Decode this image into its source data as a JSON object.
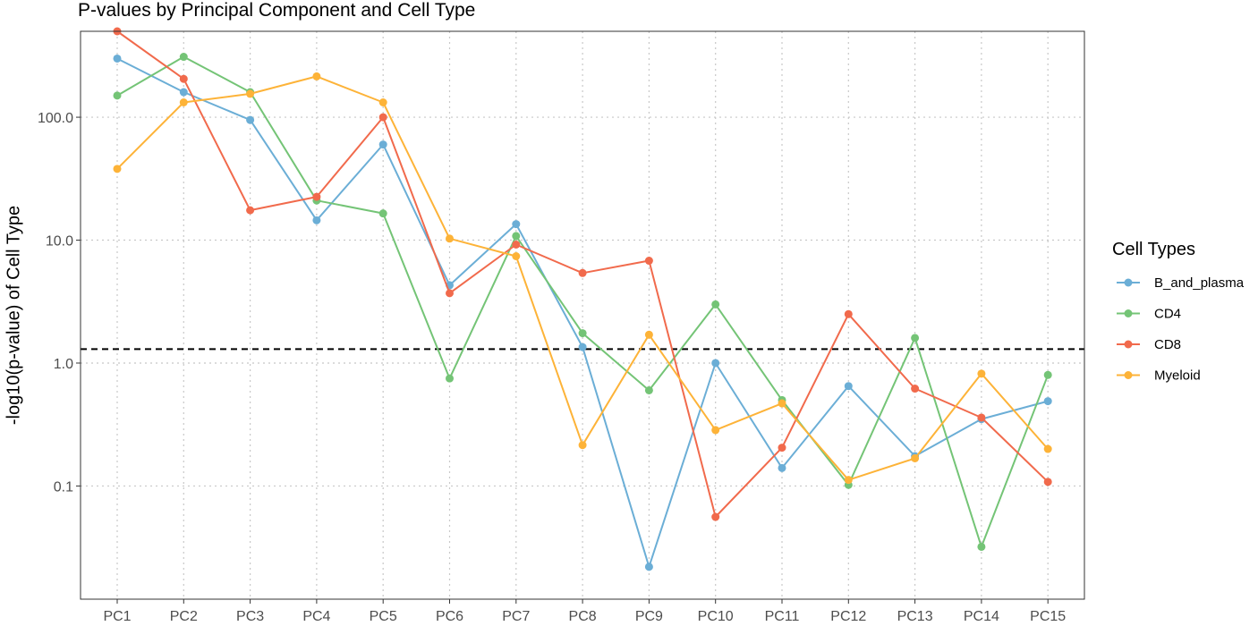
{
  "chart_data": {
    "type": "line",
    "title": "P-values by Principal Component and Cell Type",
    "xlabel": "",
    "ylabel": "-log10(p-value) of Cell Type",
    "y_scale": "log10",
    "ylim": [
      0.012,
      500
    ],
    "yticks": [
      {
        "value": 0.1,
        "label": "0.1"
      },
      {
        "value": 1,
        "label": "1.0"
      },
      {
        "value": 10,
        "label": "10.0"
      },
      {
        "value": 100,
        "label": "100.0"
      }
    ],
    "categories": [
      "PC1",
      "PC2",
      "PC3",
      "PC4",
      "PC5",
      "PC6",
      "PC7",
      "PC8",
      "PC9",
      "PC10",
      "PC11",
      "PC12",
      "PC13",
      "PC14",
      "PC15"
    ],
    "threshold_line": {
      "value": 1.3,
      "style": "dashed",
      "color": "#000000"
    },
    "grid": true,
    "legend": {
      "title": "Cell Types",
      "position": "right"
    },
    "series": [
      {
        "name": "B_and_plasma",
        "color": "#6baed6",
        "values": [
          300,
          160,
          95,
          14.5,
          60,
          4.3,
          13.5,
          1.35,
          0.022,
          1.0,
          0.14,
          0.65,
          0.175,
          0.35,
          0.49
        ]
      },
      {
        "name": "CD4",
        "color": "#74c476",
        "values": [
          150,
          310,
          160,
          21,
          16.5,
          0.75,
          10.8,
          1.75,
          0.6,
          3.0,
          0.5,
          0.102,
          1.6,
          0.032,
          0.8
        ]
      },
      {
        "name": "CD8",
        "color": "#f16a4c",
        "values": [
          500,
          205,
          17.5,
          22.5,
          100,
          3.7,
          9.2,
          5.4,
          6.8,
          0.056,
          0.205,
          2.5,
          0.62,
          0.36,
          0.108
        ]
      },
      {
        "name": "Myeloid",
        "color": "#fdb338",
        "values": [
          38,
          132,
          155,
          215,
          132,
          10.3,
          7.4,
          0.215,
          1.7,
          0.285,
          0.47,
          0.112,
          0.168,
          0.82,
          0.2
        ]
      }
    ]
  }
}
